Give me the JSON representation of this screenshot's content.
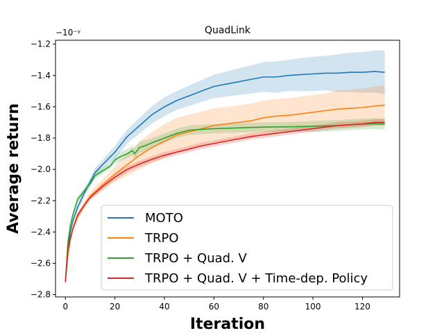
{
  "chart_data": {
    "type": "line",
    "title": "QuadLink",
    "xlabel": "Iteration",
    "ylabel": "Average return",
    "offset_text": "−10⁻ʸ",
    "xlim": [
      -4,
      135
    ],
    "ylim": [
      -2.815,
      -1.175
    ],
    "xticks": [
      0,
      20,
      40,
      60,
      80,
      100,
      120
    ],
    "xtick_labels": [
      "0",
      "20",
      "40",
      "60",
      "80",
      "100",
      "120"
    ],
    "yticks": [
      -2.8,
      -2.6,
      -2.4,
      -2.2,
      -2.0,
      -1.8,
      -1.6,
      -1.4,
      -1.2
    ],
    "ytick_labels": [
      "−2.8",
      "−2.6",
      "−2.4",
      "−2.2",
      "−2.0",
      "−1.8",
      "−1.6",
      "−1.4",
      "−1.2"
    ],
    "legend_position": "lower-right",
    "series": [
      {
        "name": "MOTO",
        "color": "#1f77b4",
        "x": [
          0,
          1,
          2,
          3,
          5,
          8,
          10,
          12,
          15,
          20,
          25,
          30,
          35,
          40,
          45,
          50,
          55,
          60,
          65,
          70,
          75,
          80,
          85,
          90,
          95,
          100,
          105,
          110,
          115,
          120,
          125,
          129
        ],
        "y": [
          -2.72,
          -2.52,
          -2.4,
          -2.33,
          -2.24,
          -2.14,
          -2.08,
          -2.02,
          -1.97,
          -1.89,
          -1.79,
          -1.72,
          -1.65,
          -1.6,
          -1.56,
          -1.53,
          -1.5,
          -1.47,
          -1.455,
          -1.44,
          -1.425,
          -1.41,
          -1.41,
          -1.4,
          -1.395,
          -1.39,
          -1.385,
          -1.385,
          -1.38,
          -1.38,
          -1.375,
          -1.38
        ],
        "band_width": [
          0.01,
          0.02,
          0.02,
          0.02,
          0.025,
          0.025,
          0.025,
          0.03,
          0.03,
          0.04,
          0.045,
          0.05,
          0.055,
          0.06,
          0.06,
          0.065,
          0.07,
          0.075,
          0.08,
          0.085,
          0.09,
          0.095,
          0.1,
          0.1,
          0.105,
          0.11,
          0.11,
          0.12,
          0.125,
          0.13,
          0.135,
          0.14
        ]
      },
      {
        "name": "TRPO",
        "color": "#ff7f0e",
        "x": [
          0,
          1,
          2,
          3,
          5,
          8,
          10,
          15,
          20,
          25,
          30,
          35,
          40,
          45,
          50,
          55,
          60,
          65,
          70,
          75,
          80,
          85,
          90,
          95,
          100,
          105,
          110,
          115,
          120,
          125,
          129
        ],
        "y": [
          -2.72,
          -2.55,
          -2.45,
          -2.38,
          -2.3,
          -2.22,
          -2.17,
          -2.1,
          -2.03,
          -1.97,
          -1.91,
          -1.86,
          -1.82,
          -1.78,
          -1.76,
          -1.74,
          -1.72,
          -1.71,
          -1.7,
          -1.69,
          -1.67,
          -1.66,
          -1.655,
          -1.645,
          -1.635,
          -1.625,
          -1.615,
          -1.61,
          -1.605,
          -1.595,
          -1.59
        ],
        "band_width": [
          0.01,
          0.02,
          0.02,
          0.02,
          0.02,
          0.025,
          0.025,
          0.035,
          0.05,
          0.07,
          0.09,
          0.1,
          0.11,
          0.11,
          0.11,
          0.11,
          0.11,
          0.11,
          0.11,
          0.11,
          0.11,
          0.11,
          0.11,
          0.11,
          0.11,
          0.11,
          0.12,
          0.12,
          0.12,
          0.125,
          0.125
        ]
      },
      {
        "name": "TRPO + Quad. V",
        "color": "#2ca02c",
        "x": [
          0,
          1,
          2,
          3,
          5,
          7,
          10,
          12,
          15,
          18,
          20,
          22,
          25,
          27,
          28,
          30,
          32,
          35,
          40,
          45,
          50,
          55,
          60,
          70,
          80,
          90,
          100,
          110,
          120,
          125,
          129
        ],
        "y": [
          -2.72,
          -2.47,
          -2.36,
          -2.29,
          -2.19,
          -2.15,
          -2.09,
          -2.04,
          -2.01,
          -1.98,
          -1.94,
          -1.92,
          -1.9,
          -1.88,
          -1.9,
          -1.86,
          -1.85,
          -1.83,
          -1.8,
          -1.77,
          -1.75,
          -1.745,
          -1.74,
          -1.735,
          -1.73,
          -1.728,
          -1.725,
          -1.72,
          -1.71,
          -1.708,
          -1.71
        ],
        "band_width": [
          0.01,
          0.015,
          0.015,
          0.02,
          0.02,
          0.02,
          0.02,
          0.02,
          0.02,
          0.02,
          0.025,
          0.03,
          0.03,
          0.03,
          0.035,
          0.035,
          0.035,
          0.03,
          0.03,
          0.03,
          0.03,
          0.03,
          0.03,
          0.03,
          0.03,
          0.03,
          0.035,
          0.035,
          0.035,
          0.035,
          0.035
        ]
      },
      {
        "name": "TRPO + Quad. V + Time-dep. Policy",
        "color": "#d62728",
        "x": [
          0,
          1,
          2,
          3,
          5,
          8,
          10,
          15,
          20,
          25,
          30,
          35,
          40,
          45,
          50,
          55,
          60,
          65,
          70,
          75,
          80,
          85,
          90,
          95,
          100,
          105,
          110,
          115,
          120,
          125,
          129
        ],
        "y": [
          -2.72,
          -2.52,
          -2.44,
          -2.38,
          -2.29,
          -2.22,
          -2.18,
          -2.11,
          -2.05,
          -2.0,
          -1.965,
          -1.935,
          -1.91,
          -1.89,
          -1.87,
          -1.85,
          -1.835,
          -1.82,
          -1.805,
          -1.79,
          -1.78,
          -1.77,
          -1.76,
          -1.75,
          -1.74,
          -1.73,
          -1.72,
          -1.715,
          -1.71,
          -1.7,
          -1.7
        ],
        "band_width": [
          0.01,
          0.015,
          0.015,
          0.015,
          0.015,
          0.015,
          0.015,
          0.02,
          0.02,
          0.02,
          0.02,
          0.02,
          0.02,
          0.02,
          0.02,
          0.02,
          0.02,
          0.02,
          0.02,
          0.02,
          0.02,
          0.02,
          0.02,
          0.02,
          0.02,
          0.02,
          0.02,
          0.02,
          0.02,
          0.02,
          0.02
        ]
      }
    ]
  }
}
